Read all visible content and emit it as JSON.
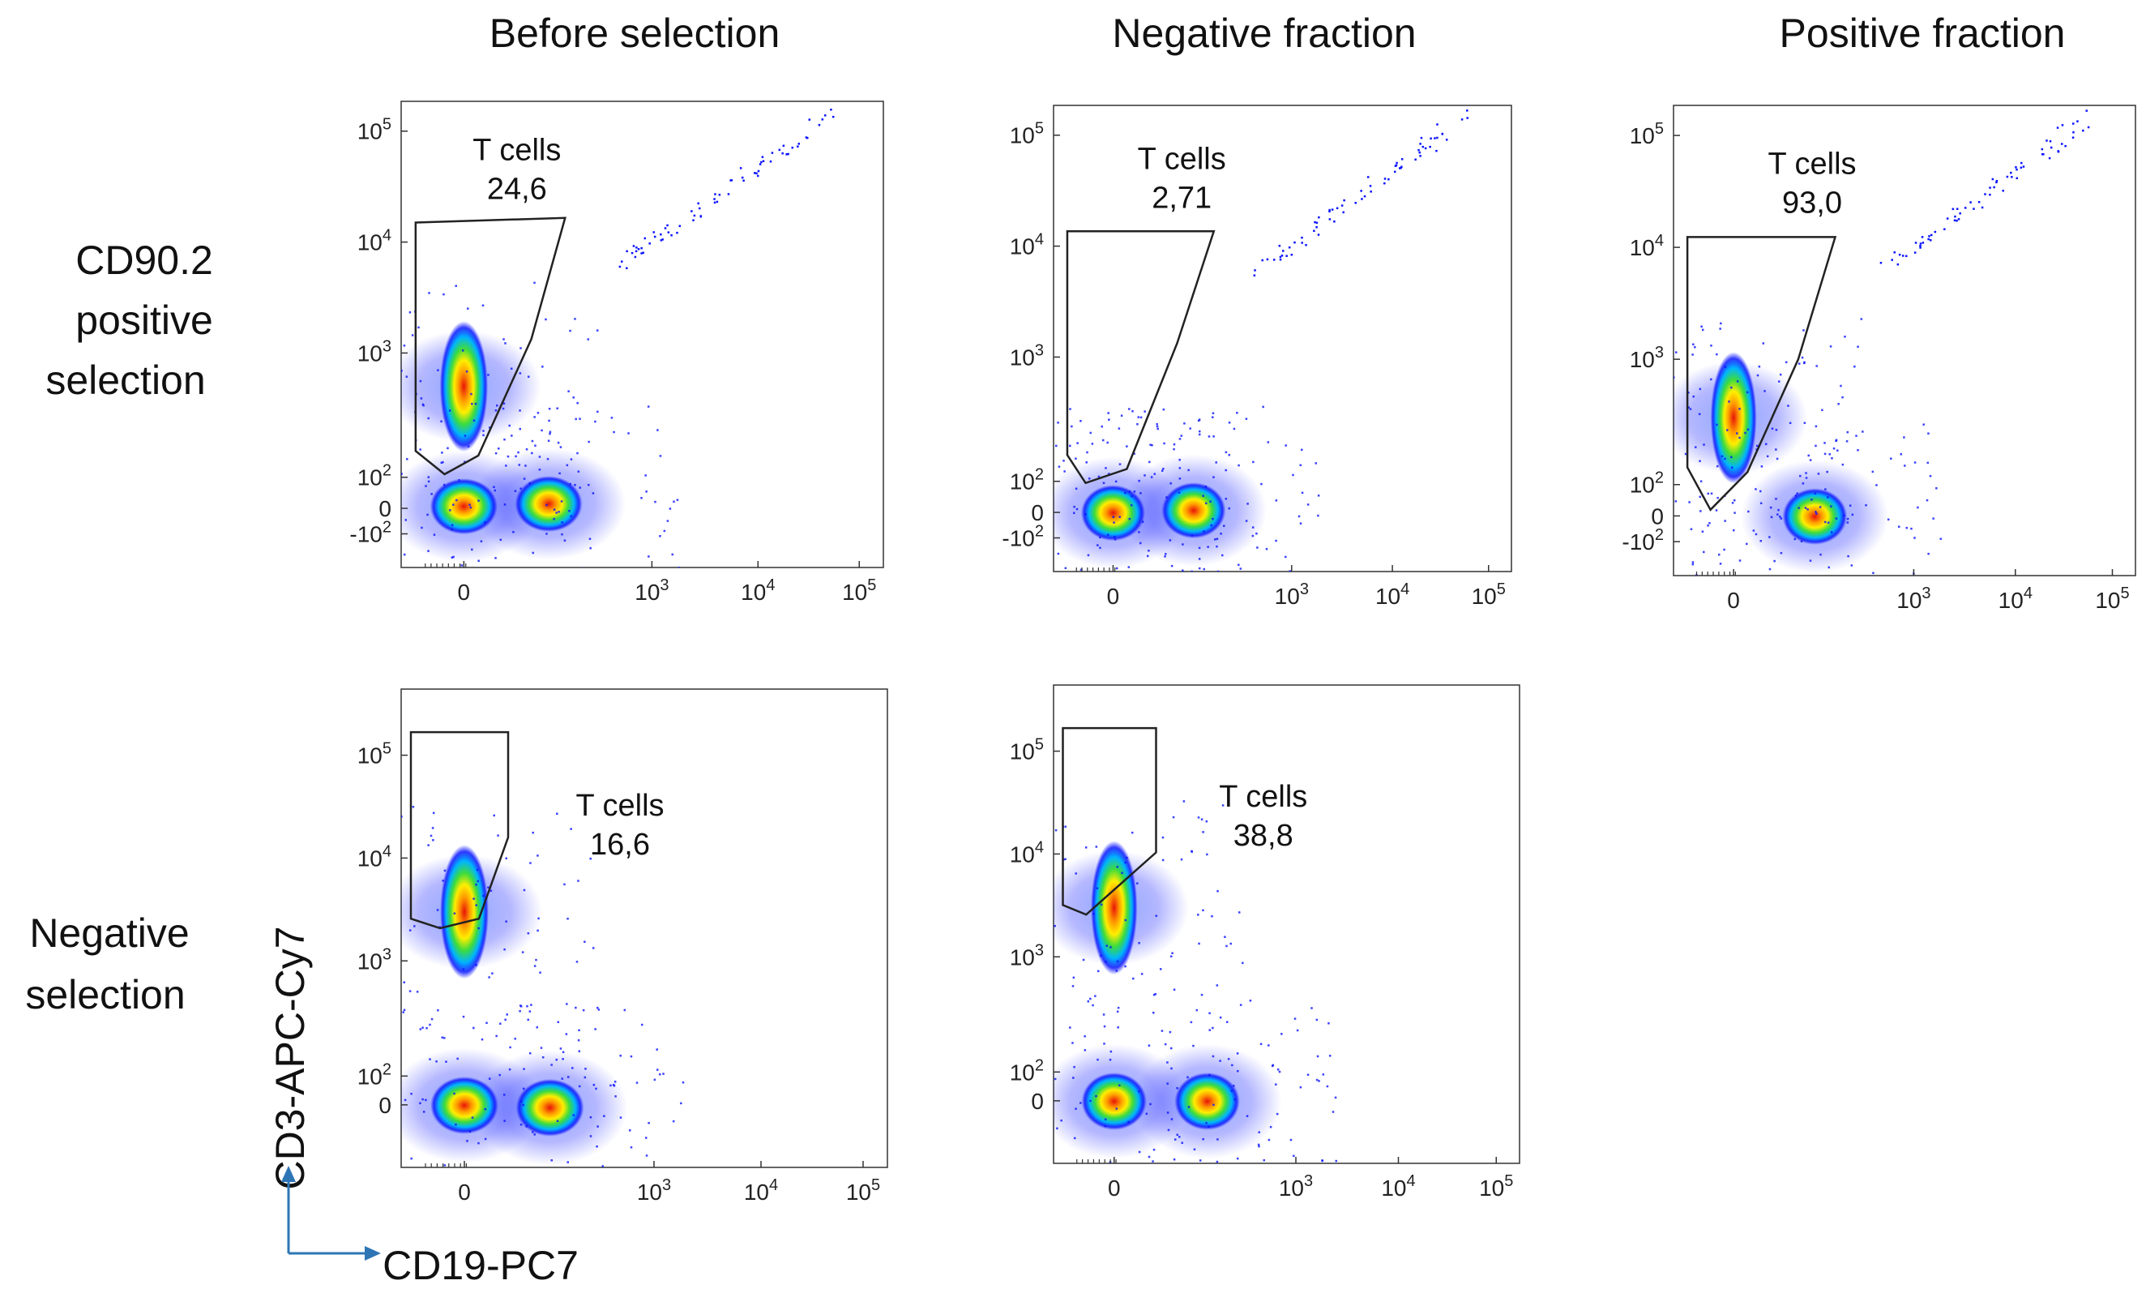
{
  "column_headers": [
    "Before selection",
    "Negative fraction",
    "Positive fraction"
  ],
  "row_headers": [
    [
      "CD90.2",
      "positive",
      "selection"
    ],
    [
      "Negative",
      "selection"
    ]
  ],
  "axis_labels": {
    "x": "CD19-PC7",
    "y": "CD3-APC-Cy7"
  },
  "colors": {
    "axis_arrow": "#2e75b6",
    "gate": "#222222",
    "density_low": "#0a14ff",
    "density_high": "#e8140a"
  },
  "chart_data": [
    {
      "type": "scatter",
      "panel": "CD90.2 positive selection / Before selection",
      "x_scale": "biexponential",
      "y_scale": "biexponential",
      "x_ticks": [
        "0",
        "10^3",
        "10^4",
        "10^5"
      ],
      "y_ticks": [
        "-10^2",
        "0",
        "10^2",
        "10^3",
        "10^4",
        "10^5"
      ],
      "gate": {
        "name": "T cells",
        "value": "24,6"
      },
      "populations": [
        {
          "x": 0,
          "y": 500
        },
        {
          "x": 0,
          "y": 15
        },
        {
          "x": 1500,
          "y": 20
        }
      ]
    },
    {
      "type": "scatter",
      "panel": "CD90.2 positive selection / Negative fraction",
      "x_scale": "biexponential",
      "y_scale": "biexponential",
      "x_ticks": [
        "0",
        "10^3",
        "10^4",
        "10^5"
      ],
      "y_ticks": [
        "-10^2",
        "0",
        "10^2",
        "10^3",
        "10^4",
        "10^5"
      ],
      "gate": {
        "name": "T cells",
        "value": "2,71"
      },
      "populations": [
        {
          "x": 0,
          "y": 10
        },
        {
          "x": 1500,
          "y": 15
        }
      ]
    },
    {
      "type": "scatter",
      "panel": "CD90.2 positive selection / Positive fraction",
      "x_scale": "biexponential",
      "y_scale": "biexponential",
      "x_ticks": [
        "0",
        "10^3",
        "10^4",
        "10^5"
      ],
      "y_ticks": [
        "-10^2",
        "0",
        "10^2",
        "10^3",
        "10^4",
        "10^5"
      ],
      "gate": {
        "name": "T cells",
        "value": "93,0"
      },
      "populations": [
        {
          "x": 0,
          "y": 300
        },
        {
          "x": 1500,
          "y": 10
        }
      ]
    },
    {
      "type": "scatter",
      "panel": "Negative selection / Before selection",
      "x_scale": "biexponential",
      "y_scale": "biexponential",
      "x_ticks": [
        "0",
        "10^3",
        "10^4",
        "10^5"
      ],
      "y_ticks": [
        "0",
        "10^2",
        "10^3",
        "10^4",
        "10^5"
      ],
      "gate": {
        "name": "T cells",
        "value": "16,6"
      },
      "populations": [
        {
          "x": 0,
          "y": 3000
        },
        {
          "x": 0,
          "y": 10
        },
        {
          "x": 1500,
          "y": 5
        }
      ]
    },
    {
      "type": "scatter",
      "panel": "Negative selection / Negative fraction",
      "x_scale": "biexponential",
      "y_scale": "biexponential",
      "x_ticks": [
        "0",
        "10^3",
        "10^4",
        "10^5"
      ],
      "y_ticks": [
        "0",
        "10^2",
        "10^3",
        "10^4",
        "10^5"
      ],
      "gate": {
        "name": "T cells",
        "value": "38,8"
      },
      "populations": [
        {
          "x": 0,
          "y": 3000
        },
        {
          "x": 0,
          "y": 10
        },
        {
          "x": 2000,
          "y": 10
        }
      ]
    }
  ]
}
